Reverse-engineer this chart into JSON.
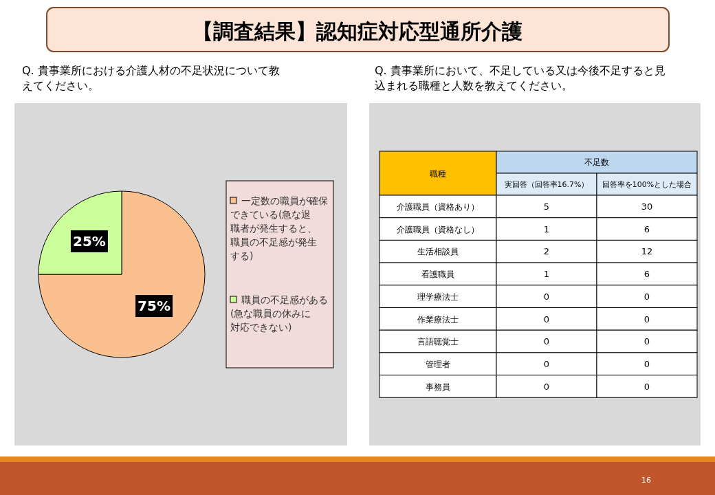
{
  "chart_data": [
    {
      "type": "pie",
      "title": "【調査結果】認知症対応型通所介護",
      "subtitle": "Q. 貴事業所における介護人材の不足状況について教えてください。",
      "categories": [
        "一定数の職員が確保できている(急な退職者が発生すると、職員の不足感が発生する)",
        "職員の不足感がある(急な職員の休みに対応できない)"
      ],
      "values": [
        75,
        25
      ],
      "colors": [
        "#fac090",
        "#ccff99"
      ],
      "value_labels": [
        "75%",
        "25%"
      ],
      "legend": "right"
    },
    {
      "type": "other",
      "subtitle": "Q. 貴事業所において、不足している又は今後不足すると見込まれる職種と人数を教えてください。",
      "ylabel": "職種",
      "legend_title": "不足数",
      "categories": [
        "介護職員（資格あり）",
        "介護職員（資格なし）",
        "生活相談員",
        "看護職員",
        "理学療法士",
        "作業療法士",
        "言語聴覚士",
        "管理者",
        "事務員"
      ],
      "series": [
        {
          "name": "実回答（回答率16.7%）",
          "values": [
            5,
            1,
            2,
            1,
            0,
            0,
            0,
            0,
            0
          ]
        },
        {
          "name": "回答率を100%とした場合",
          "values": [
            30,
            6,
            12,
            6,
            0,
            0,
            0,
            0,
            0
          ]
        }
      ],
      "data_labels": true,
      "annotations": [
        "16"
      ]
    }
  ]
}
